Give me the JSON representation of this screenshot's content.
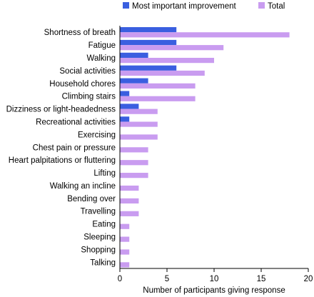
{
  "chart_data": {
    "type": "bar",
    "orientation": "horizontal",
    "categories": [
      "Shortness of breath",
      "Fatigue",
      "Walking",
      "Social activities",
      "Household chores",
      "Climbing stairs",
      "Dizziness or light-headedness",
      "Recreational activities",
      "Exercising",
      "Chest pain or pressure",
      "Heart palpitations or fluttering",
      "Lifting",
      "Walking an incline",
      "Bending over",
      "Travelling",
      "Eating",
      "Sleeping",
      "Shopping",
      "Talking"
    ],
    "series": [
      {
        "name": "Most important improvement",
        "color": "#3a5fe0",
        "values": [
          6,
          6,
          3,
          6,
          3,
          1,
          2,
          1,
          0,
          0,
          0,
          0,
          0,
          0,
          0,
          0,
          0,
          0,
          0
        ]
      },
      {
        "name": "Total",
        "color": "#c99cf0",
        "values": [
          18,
          11,
          10,
          9,
          8,
          8,
          4,
          4,
          4,
          3,
          3,
          3,
          2,
          2,
          2,
          1,
          1,
          1,
          1
        ]
      }
    ],
    "xlabel": "Number of participants giving response",
    "ylabel": "",
    "xlim": [
      0,
      20
    ],
    "xticks": [
      0,
      5,
      10,
      15,
      20
    ],
    "grid": false,
    "legend_position": "top"
  }
}
